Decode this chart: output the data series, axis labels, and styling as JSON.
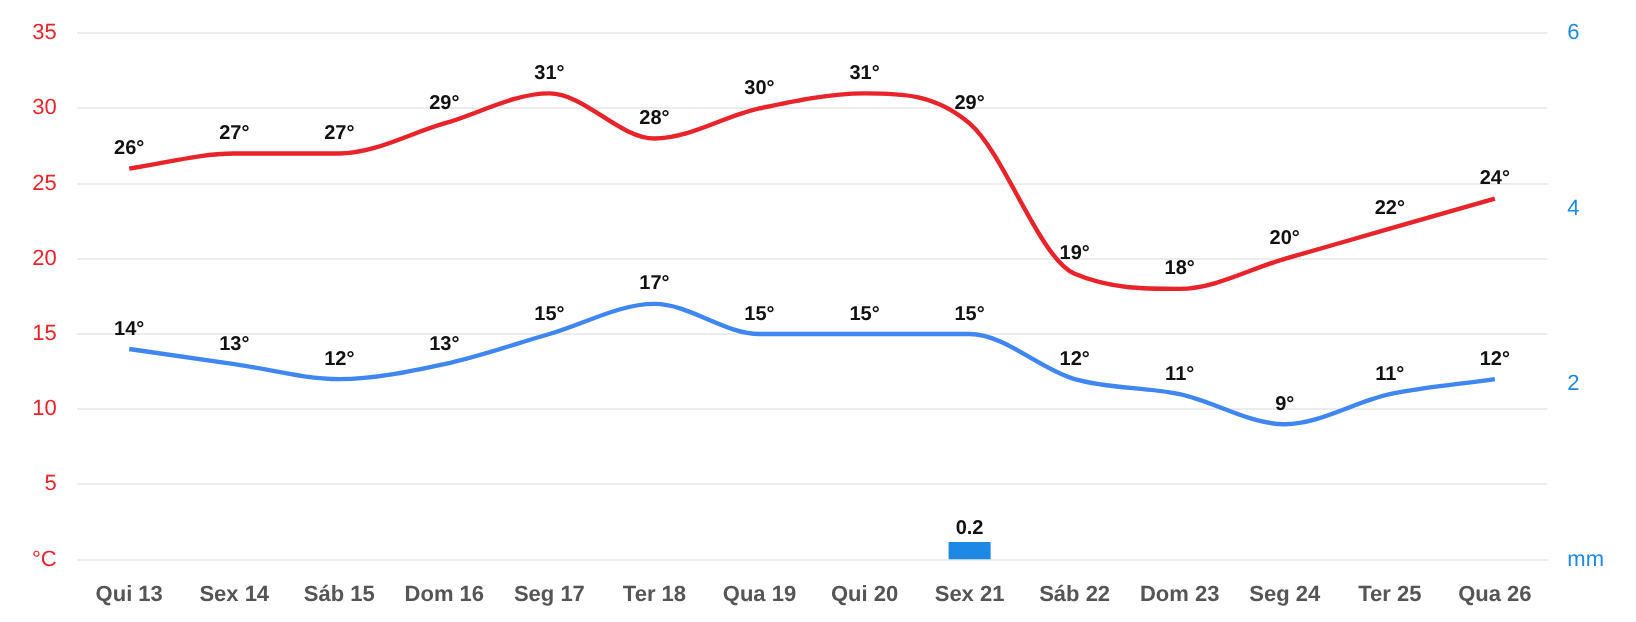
{
  "chart_data": {
    "type": "line",
    "categories": [
      "Qui 13",
      "Sex 14",
      "Sáb 15",
      "Dom 16",
      "Seg 17",
      "Ter 18",
      "Qua 19",
      "Qui 20",
      "Sex 21",
      "Sáb 22",
      "Dom 23",
      "Seg 24",
      "Ter 25",
      "Qua 26"
    ],
    "series": [
      {
        "color": "#e8232a",
        "values": [
          26,
          27,
          27,
          29,
          31,
          28,
          30,
          31,
          29,
          19,
          18,
          20,
          22,
          24
        ],
        "value_labels": [
          "26°",
          "27°",
          "27°",
          "29°",
          "31°",
          "28°",
          "30°",
          "31°",
          "29°",
          "19°",
          "18°",
          "20°",
          "22°",
          "24°"
        ]
      },
      {
        "color": "#3f86f0",
        "values": [
          14,
          13,
          12,
          13,
          15,
          17,
          15,
          15,
          15,
          12,
          11,
          9,
          11,
          12
        ],
        "value_labels": [
          "14°",
          "13°",
          "12°",
          "13°",
          "15°",
          "17°",
          "15°",
          "15°",
          "15°",
          "12°",
          "11°",
          "9°",
          "11°",
          "12°"
        ]
      },
      {
        "type": "bar",
        "axis": "y2",
        "color": "#1e88e5",
        "values": [
          null,
          null,
          null,
          null,
          null,
          null,
          null,
          null,
          0.2,
          null,
          null,
          null,
          null,
          null
        ],
        "value_labels": [
          null,
          null,
          null,
          null,
          null,
          null,
          null,
          null,
          "0.2",
          null,
          null,
          null,
          null,
          null
        ]
      }
    ],
    "ylim": [
      0,
      35
    ],
    "yticks": [
      {
        "value": 0,
        "label": "°C"
      },
      5,
      10,
      15,
      20,
      25,
      30,
      35
    ],
    "y2lim": [
      0,
      6
    ],
    "y2ticks": [
      {
        "value": 0,
        "label": "mm"
      },
      2,
      4,
      6
    ],
    "grid": "y",
    "legend": false,
    "marker": "none",
    "line_style": "solid"
  }
}
